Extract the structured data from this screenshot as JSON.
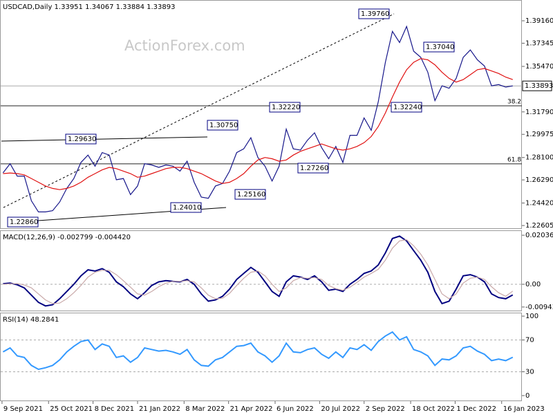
{
  "chart_data": [
    {
      "type": "line",
      "title": "USDCAD,Daily 1.33951 1.34067 1.33884 1.33893",
      "watermark": "ActionForex.com",
      "xlim": [
        "2021-09-07",
        "2023-02-05"
      ],
      "xticks": [
        {
          "value": "2021-09-09",
          "label": "9 Sep 2021"
        },
        {
          "value": "2021-10-25",
          "label": "25 Oct 2021"
        },
        {
          "value": "2021-12-08",
          "label": "8 Dec 2021"
        },
        {
          "value": "2022-01-21",
          "label": "21 Jan 2022"
        },
        {
          "value": "2022-03-08",
          "label": "8 Mar 2022"
        },
        {
          "value": "2022-04-21",
          "label": "21 Apr 2022"
        },
        {
          "value": "2022-06-06",
          "label": "6 Jun 2022"
        },
        {
          "value": "2022-07-20",
          "label": "20 Jul 2022"
        },
        {
          "value": "2022-09-02",
          "label": "2 Sep 2022"
        },
        {
          "value": "2022-10-18",
          "label": "18 Oct 2022"
        },
        {
          "value": "2022-12-01",
          "label": "1 Dec 2022"
        },
        {
          "value": "2023-01-16",
          "label": "16 Jan 2023"
        }
      ],
      "x": [
        "2021-09-10",
        "2021-09-17",
        "2021-09-24",
        "2021-10-01",
        "2021-10-08",
        "2021-10-15",
        "2021-10-22",
        "2021-10-29",
        "2021-11-05",
        "2021-11-12",
        "2021-11-19",
        "2021-11-26",
        "2021-12-03",
        "2021-12-10",
        "2021-12-17",
        "2021-12-24",
        "2021-12-31",
        "2022-01-07",
        "2022-01-14",
        "2022-01-21",
        "2022-01-28",
        "2022-02-04",
        "2022-02-11",
        "2022-02-18",
        "2022-02-25",
        "2022-03-04",
        "2022-03-11",
        "2022-03-18",
        "2022-03-25",
        "2022-04-01",
        "2022-04-08",
        "2022-04-15",
        "2022-04-22",
        "2022-04-29",
        "2022-05-06",
        "2022-05-13",
        "2022-05-20",
        "2022-05-27",
        "2022-06-03",
        "2022-06-10",
        "2022-06-17",
        "2022-06-24",
        "2022-07-01",
        "2022-07-08",
        "2022-07-15",
        "2022-07-22",
        "2022-07-29",
        "2022-08-05",
        "2022-08-12",
        "2022-08-19",
        "2022-08-26",
        "2022-09-02",
        "2022-09-09",
        "2022-09-16",
        "2022-09-23",
        "2022-09-30",
        "2022-10-07",
        "2022-10-14",
        "2022-10-21",
        "2022-10-28",
        "2022-11-04",
        "2022-11-11",
        "2022-11-18",
        "2022-11-25",
        "2022-12-02",
        "2022-12-09",
        "2022-12-16",
        "2022-12-23",
        "2022-12-30",
        "2023-01-06",
        "2023-01-13",
        "2023-01-20",
        "2023-01-27"
      ],
      "series": [
        {
          "color": "#16168a",
          "values": [
            1.2686,
            1.276,
            1.266,
            1.266,
            1.246,
            1.237,
            1.237,
            1.238,
            1.245,
            1.256,
            1.264,
            1.277,
            1.283,
            1.274,
            1.285,
            1.283,
            1.263,
            1.264,
            1.251,
            1.258,
            1.276,
            1.275,
            1.273,
            1.275,
            1.274,
            1.27,
            1.278,
            1.261,
            1.249,
            1.248,
            1.258,
            1.26,
            1.27,
            1.285,
            1.288,
            1.297,
            1.281,
            1.274,
            1.262,
            1.274,
            1.304,
            1.288,
            1.287,
            1.295,
            1.301,
            1.289,
            1.28,
            1.29,
            1.277,
            1.299,
            1.299,
            1.313,
            1.303,
            1.326,
            1.358,
            1.383,
            1.374,
            1.387,
            1.367,
            1.362,
            1.35,
            1.327,
            1.339,
            1.337,
            1.345,
            1.362,
            1.368,
            1.36,
            1.355,
            1.339,
            1.34,
            1.338,
            1.33893
          ]
        },
        {
          "color": "#e01010",
          "values": [
            1.268,
            1.2685,
            1.268,
            1.267,
            1.264,
            1.261,
            1.258,
            1.256,
            1.255,
            1.256,
            1.258,
            1.261,
            1.265,
            1.268,
            1.271,
            1.273,
            1.272,
            1.27,
            1.268,
            1.265,
            1.266,
            1.268,
            1.27,
            1.272,
            1.273,
            1.273,
            1.272,
            1.27,
            1.268,
            1.265,
            1.262,
            1.26,
            1.261,
            1.264,
            1.268,
            1.274,
            1.279,
            1.281,
            1.28,
            1.278,
            1.279,
            1.283,
            1.286,
            1.288,
            1.29,
            1.292,
            1.29,
            1.288,
            1.287,
            1.288,
            1.29,
            1.293,
            1.298,
            1.306,
            1.317,
            1.33,
            1.342,
            1.352,
            1.358,
            1.361,
            1.36,
            1.356,
            1.35,
            1.345,
            1.342,
            1.344,
            1.348,
            1.352,
            1.353,
            1.351,
            1.349,
            1.346,
            1.344
          ]
        }
      ],
      "ylim": [
        1.2238,
        1.4084
      ],
      "yticks": [
        {
          "value": 1.226,
          "label": "1.22605"
        },
        {
          "value": 1.2442,
          "label": "1.24420"
        },
        {
          "value": 1.2629,
          "label": "1.26290"
        },
        {
          "value": 1.281,
          "label": "1.28100"
        },
        {
          "value": 1.29975,
          "label": "1.29975"
        },
        {
          "value": 1.3179,
          "label": "1.31790"
        },
        {
          "value": 1.3547,
          "label": "1.35470"
        },
        {
          "value": 1.37345,
          "label": "1.37345"
        },
        {
          "value": 1.3916,
          "label": "1.39160"
        }
      ],
      "last_price": {
        "value": 1.33893,
        "label": "1.33893"
      },
      "levels": [
        {
          "value": 1.3228,
          "label": "38.2"
        },
        {
          "value": 1.2759,
          "label": "61.8"
        }
      ],
      "annotations": [
        "1.39760",
        "1.37040",
        "1.32220",
        "1.32240",
        "1.30750",
        "1.29630",
        "1.27260",
        "1.25160",
        "1.24010",
        "1.22860"
      ]
    },
    {
      "type": "line",
      "title": "MACD(12,26,9) -0.002799 -0.004420",
      "series": [
        {
          "color": "#000080",
          "values": [
            0.0002,
            0.0005,
            -0.0002,
            -0.0015,
            -0.0045,
            -0.0075,
            -0.009,
            -0.0085,
            -0.006,
            -0.003,
            0.0,
            0.0035,
            0.006,
            0.0055,
            0.0065,
            0.005,
            0.001,
            -0.001,
            -0.004,
            -0.006,
            -0.0035,
            -0.0005,
            0.001,
            0.0015,
            0.0012,
            0.001,
            0.002,
            0.0,
            -0.004,
            -0.007,
            -0.0065,
            -0.005,
            -0.002,
            0.002,
            0.0045,
            0.007,
            0.005,
            0.001,
            -0.003,
            -0.005,
            0.001,
            0.0035,
            0.003,
            0.002,
            0.0035,
            0.001,
            -0.0025,
            -0.002,
            -0.003,
            0.0,
            0.002,
            0.0045,
            0.0055,
            0.008,
            0.013,
            0.019,
            0.02,
            0.018,
            0.014,
            0.01,
            0.005,
            -0.003,
            -0.008,
            -0.007,
            -0.002,
            0.0035,
            0.004,
            0.003,
            0.001,
            -0.004,
            -0.0055,
            -0.006,
            -0.00442
          ]
        },
        {
          "color": "#c9a9a9",
          "values": [
            0.0,
            0.0002,
            0.0003,
            -0.0003,
            -0.0015,
            -0.004,
            -0.0065,
            -0.008,
            -0.0078,
            -0.006,
            -0.0035,
            -0.0005,
            0.003,
            0.005,
            0.0058,
            0.0058,
            0.004,
            0.0015,
            -0.0012,
            -0.004,
            -0.0045,
            -0.003,
            -0.001,
            0.0005,
            0.0012,
            0.0012,
            0.0015,
            0.001,
            -0.0015,
            -0.0045,
            -0.006,
            -0.0058,
            -0.0038,
            -0.0005,
            0.0025,
            0.005,
            0.0055,
            0.0035,
            0.0,
            -0.003,
            -0.0015,
            0.0015,
            0.0028,
            0.0025,
            0.0028,
            0.002,
            -0.0005,
            -0.0018,
            -0.0025,
            -0.0012,
            0.0008,
            0.003,
            0.0045,
            0.0062,
            0.01,
            0.015,
            0.018,
            0.0185,
            0.016,
            0.0125,
            0.008,
            0.002,
            -0.004,
            -0.006,
            -0.004,
            0.0005,
            0.0025,
            0.003,
            0.002,
            -0.001,
            -0.0035,
            -0.005,
            -0.0028
          ]
        }
      ],
      "ylim": [
        -0.0112,
        0.0224
      ],
      "yticks": [
        -0.009438,
        {
          "value": 0,
          "label": "0.00"
        },
        0.02036
      ],
      "levels": [
        0
      ]
    },
    {
      "type": "line",
      "title": "RSI(14) 48.2841",
      "series": [
        {
          "color": "#3399ff",
          "values": [
            55,
            60,
            50,
            48,
            38,
            33,
            35,
            38,
            45,
            55,
            62,
            68,
            70,
            58,
            65,
            62,
            48,
            50,
            42,
            48,
            60,
            58,
            56,
            57,
            55,
            52,
            58,
            45,
            38,
            37,
            45,
            48,
            55,
            62,
            63,
            66,
            55,
            50,
            42,
            50,
            66,
            55,
            54,
            58,
            60,
            52,
            47,
            55,
            48,
            60,
            58,
            64,
            57,
            68,
            75,
            80,
            70,
            74,
            58,
            55,
            50,
            38,
            46,
            45,
            50,
            60,
            62,
            56,
            52,
            44,
            46,
            44,
            48.2841
          ]
        }
      ],
      "ylim": [
        -7,
        104.4
      ],
      "yticks": [
        0,
        30,
        70,
        100
      ],
      "levels": [
        30,
        70
      ]
    }
  ]
}
